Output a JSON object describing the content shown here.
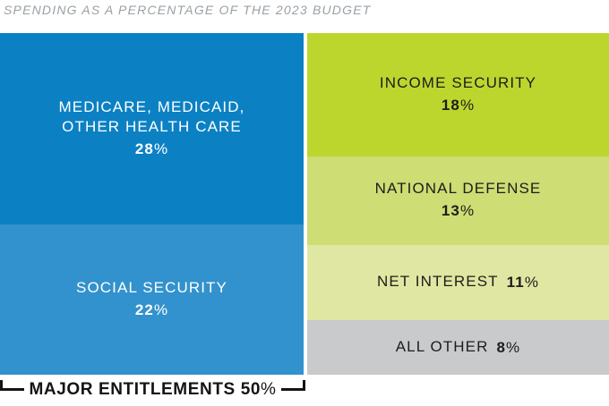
{
  "header": {
    "title": "SPENDING AS A PERCENTAGE OF THE 2023 BUDGET"
  },
  "chart_data": {
    "type": "treemap",
    "title": "SPENDING AS A PERCENTAGE OF THE 2023 BUDGET",
    "percent_sign": "%",
    "legend": "none",
    "columns": [
      {
        "name": "major-entitlements",
        "segments": [
          {
            "label": "MEDICARE, MEDICAID, OTHER HEALTH CARE",
            "value": 28,
            "color": "#0b81c4",
            "text_color": "#ffffff"
          },
          {
            "label": "SOCIAL SECURITY",
            "value": 22,
            "color": "#3292cd",
            "text_color": "#ffffff"
          }
        ],
        "bracket": {
          "label": "MAJOR ENTITLEMENTS",
          "value": 50
        }
      },
      {
        "name": "other-spending",
        "segments": [
          {
            "label": "INCOME SECURITY",
            "value": 18,
            "color": "#bdd62e",
            "text_color": "#1d1d1b"
          },
          {
            "label": "NATIONAL DEFENSE",
            "value": 13,
            "color": "#cedd74",
            "text_color": "#1d1d1b"
          },
          {
            "label": "NET INTEREST",
            "value": 11,
            "color": "#e0e7a2",
            "text_color": "#1d1d1b"
          },
          {
            "label": "ALL OTHER",
            "value": 8,
            "color": "#c8cacc",
            "text_color": "#1d1d1b"
          }
        ]
      }
    ]
  }
}
